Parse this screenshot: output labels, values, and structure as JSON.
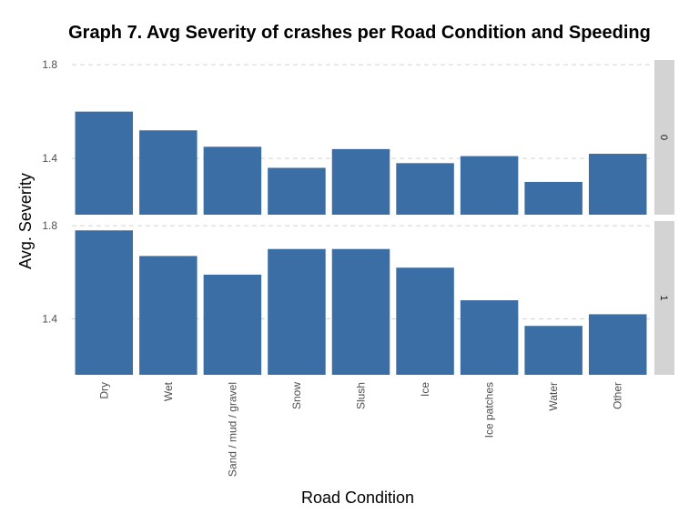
{
  "chart_data": {
    "type": "bar",
    "title": "Graph 7. Avg Severity of crashes per Road Condition and Speeding",
    "xlabel": "Road Condition",
    "ylabel": "Avg. Severity",
    "categories": [
      "Dry",
      "Wet",
      "Sand / mud / gravel",
      "Snow",
      "Slush",
      "Ice",
      "Ice patches",
      "Water",
      "Other"
    ],
    "ylim": [
      1.16,
      1.82
    ],
    "yticks": [
      1.4,
      1.8
    ],
    "ytick_labels": [
      "1.4",
      "1.8"
    ],
    "bar_color": "#3a6ea5",
    "strip_color": "#d3d3d3",
    "grid": true,
    "facets": [
      {
        "label": "0",
        "values": [
          1.6,
          1.52,
          1.45,
          1.36,
          1.44,
          1.38,
          1.41,
          1.3,
          1.42
        ]
      },
      {
        "label": "1",
        "values": [
          1.78,
          1.67,
          1.59,
          1.7,
          1.7,
          1.62,
          1.48,
          1.37,
          1.42
        ]
      }
    ]
  }
}
